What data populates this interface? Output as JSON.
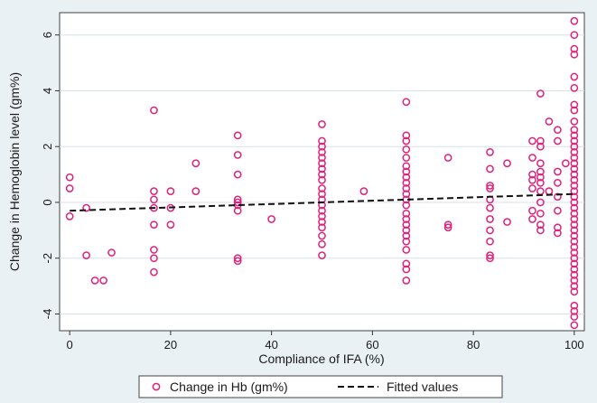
{
  "chart_data": {
    "type": "scatter",
    "xlabel": "Compliance of IFA (%)",
    "ylabel": "Change in Hemoglobin level (gm%)",
    "xlim": [
      -2,
      102
    ],
    "ylim": [
      -4.6,
      6.8
    ],
    "x_ticks": [
      0,
      20,
      40,
      60,
      80,
      100
    ],
    "y_ticks": [
      -4,
      -2,
      0,
      2,
      4,
      6
    ],
    "grid": true,
    "legend_position": "bottom",
    "series": [
      {
        "name": "Change in Hb (gm%)",
        "kind": "scatter",
        "color": "#e0207a",
        "points": [
          [
            0,
            0.9
          ],
          [
            0,
            0.5
          ],
          [
            0,
            -0.5
          ],
          [
            3.3,
            -0.2
          ],
          [
            3.3,
            -1.9
          ],
          [
            5,
            -2.8
          ],
          [
            6.7,
            -2.8
          ],
          [
            8.3,
            -1.8
          ],
          [
            16.7,
            3.3
          ],
          [
            16.7,
            0.4
          ],
          [
            16.7,
            0.1
          ],
          [
            16.7,
            -0.2
          ],
          [
            16.7,
            -0.8
          ],
          [
            16.7,
            -1.7
          ],
          [
            16.7,
            -2.0
          ],
          [
            16.7,
            -2.5
          ],
          [
            20,
            0.4
          ],
          [
            20,
            -0.2
          ],
          [
            20,
            -0.8
          ],
          [
            25,
            1.4
          ],
          [
            25,
            0.4
          ],
          [
            33.3,
            2.4
          ],
          [
            33.3,
            1.7
          ],
          [
            33.3,
            1.0
          ],
          [
            33.3,
            0.1
          ],
          [
            33.3,
            0.0
          ],
          [
            33.3,
            -0.1
          ],
          [
            33.3,
            -0.3
          ],
          [
            33.3,
            -2.0
          ],
          [
            33.3,
            -2.1
          ],
          [
            40,
            -0.6
          ],
          [
            50,
            2.8
          ],
          [
            50,
            2.2
          ],
          [
            50,
            2.0
          ],
          [
            50,
            1.8
          ],
          [
            50,
            1.6
          ],
          [
            50,
            1.4
          ],
          [
            50,
            1.2
          ],
          [
            50,
            1.0
          ],
          [
            50,
            0.8
          ],
          [
            50,
            0.5
          ],
          [
            50,
            0.3
          ],
          [
            50,
            0.1
          ],
          [
            50,
            -0.1
          ],
          [
            50,
            -0.3
          ],
          [
            50,
            -0.5
          ],
          [
            50,
            -0.7
          ],
          [
            50,
            -0.9
          ],
          [
            50,
            -1.2
          ],
          [
            50,
            -1.5
          ],
          [
            50,
            -1.9
          ],
          [
            58.3,
            0.4
          ],
          [
            66.7,
            3.6
          ],
          [
            66.7,
            2.4
          ],
          [
            66.7,
            2.2
          ],
          [
            66.7,
            1.9
          ],
          [
            66.7,
            1.6
          ],
          [
            66.7,
            1.3
          ],
          [
            66.7,
            1.1
          ],
          [
            66.7,
            0.9
          ],
          [
            66.7,
            0.7
          ],
          [
            66.7,
            0.5
          ],
          [
            66.7,
            0.3
          ],
          [
            66.7,
            0.1
          ],
          [
            66.7,
            -0.1
          ],
          [
            66.7,
            -0.4
          ],
          [
            66.7,
            -0.6
          ],
          [
            66.7,
            -0.8
          ],
          [
            66.7,
            -1.0
          ],
          [
            66.7,
            -1.2
          ],
          [
            66.7,
            -1.4
          ],
          [
            66.7,
            -1.7
          ],
          [
            66.7,
            -2.2
          ],
          [
            66.7,
            -2.4
          ],
          [
            66.7,
            -2.8
          ],
          [
            75,
            1.6
          ],
          [
            75,
            -0.8
          ],
          [
            75,
            -0.9
          ],
          [
            83.3,
            1.8
          ],
          [
            83.3,
            1.2
          ],
          [
            83.3,
            0.6
          ],
          [
            83.3,
            0.5
          ],
          [
            83.3,
            0.1
          ],
          [
            83.3,
            -0.2
          ],
          [
            83.3,
            -0.6
          ],
          [
            83.3,
            -1.0
          ],
          [
            83.3,
            -1.4
          ],
          [
            83.3,
            -1.9
          ],
          [
            83.3,
            -2.0
          ],
          [
            86.7,
            1.4
          ],
          [
            86.7,
            -0.7
          ],
          [
            91.7,
            2.2
          ],
          [
            91.7,
            1.6
          ],
          [
            91.7,
            1.0
          ],
          [
            91.7,
            0.8
          ],
          [
            91.7,
            0.5
          ],
          [
            91.7,
            -0.3
          ],
          [
            91.7,
            -0.6
          ],
          [
            93.3,
            3.9
          ],
          [
            93.3,
            2.2
          ],
          [
            93.3,
            2.0
          ],
          [
            93.3,
            1.4
          ],
          [
            93.3,
            1.1
          ],
          [
            93.3,
            0.9
          ],
          [
            93.3,
            0.7
          ],
          [
            93.3,
            0.4
          ],
          [
            93.3,
            0.0
          ],
          [
            93.3,
            -0.4
          ],
          [
            93.3,
            -0.8
          ],
          [
            93.3,
            -1.0
          ],
          [
            95,
            2.9
          ],
          [
            95,
            0.4
          ],
          [
            96.7,
            2.6
          ],
          [
            96.7,
            2.2
          ],
          [
            96.7,
            1.1
          ],
          [
            96.7,
            0.7
          ],
          [
            96.7,
            0.2
          ],
          [
            96.7,
            -0.3
          ],
          [
            96.7,
            -0.9
          ],
          [
            96.7,
            -1.1
          ],
          [
            98.3,
            1.4
          ],
          [
            100,
            6.5
          ],
          [
            100,
            6.0
          ],
          [
            100,
            5.5
          ],
          [
            100,
            5.3
          ],
          [
            100,
            4.5
          ],
          [
            100,
            4.1
          ],
          [
            100,
            3.5
          ],
          [
            100,
            3.3
          ],
          [
            100,
            2.9
          ],
          [
            100,
            2.6
          ],
          [
            100,
            2.4
          ],
          [
            100,
            2.2
          ],
          [
            100,
            2.0
          ],
          [
            100,
            1.8
          ],
          [
            100,
            1.6
          ],
          [
            100,
            1.4
          ],
          [
            100,
            1.2
          ],
          [
            100,
            1.0
          ],
          [
            100,
            0.8
          ],
          [
            100,
            0.6
          ],
          [
            100,
            0.4
          ],
          [
            100,
            0.2
          ],
          [
            100,
            0.0
          ],
          [
            100,
            -0.2
          ],
          [
            100,
            -0.4
          ],
          [
            100,
            -0.6
          ],
          [
            100,
            -0.8
          ],
          [
            100,
            -1.0
          ],
          [
            100,
            -1.2
          ],
          [
            100,
            -1.4
          ],
          [
            100,
            -1.6
          ],
          [
            100,
            -1.8
          ],
          [
            100,
            -2.0
          ],
          [
            100,
            -2.2
          ],
          [
            100,
            -2.4
          ],
          [
            100,
            -2.6
          ],
          [
            100,
            -2.8
          ],
          [
            100,
            -3.0
          ],
          [
            100,
            -3.2
          ],
          [
            100,
            -3.7
          ],
          [
            100,
            -3.9
          ],
          [
            100,
            -4.1
          ],
          [
            100,
            -4.4
          ]
        ]
      },
      {
        "name": "Fitted values",
        "kind": "line",
        "style": "dashed",
        "color": "#111111",
        "x": [
          0,
          100
        ],
        "y": [
          -0.3,
          0.3
        ]
      }
    ]
  }
}
